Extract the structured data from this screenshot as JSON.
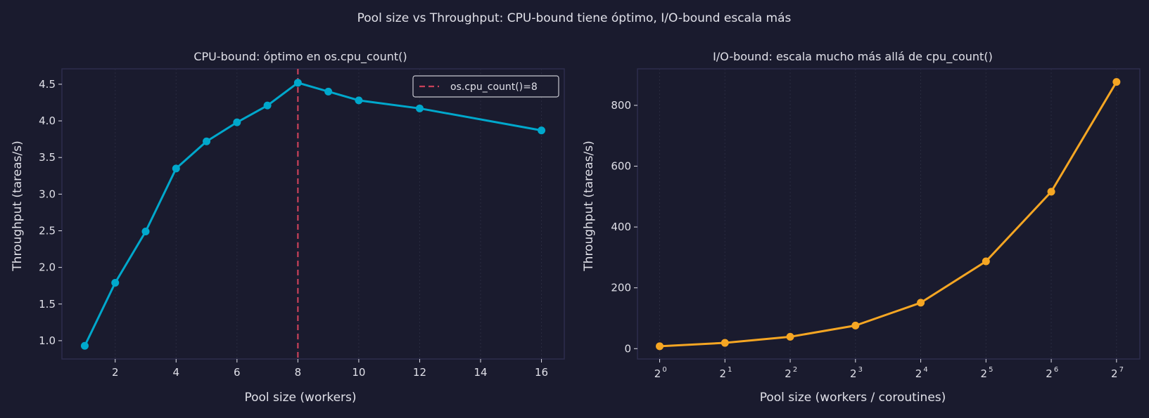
{
  "suptitle": "Pool size vs Throughput: CPU-bound tiene óptimo, I/O-bound escala más",
  "colors": {
    "background": "#1a1b2e",
    "frame": "#2c2d4d",
    "grid": "#2a2b40",
    "cpu_line": "#00a8cc",
    "io_line": "#f5a623",
    "marker_line": "#c9415a",
    "text": "#e0e0e8"
  },
  "chart_data": [
    {
      "type": "line",
      "title": "CPU-bound: óptimo en os.cpu_count()",
      "xlabel": "Pool size (workers)",
      "ylabel": "Throughput (tareas/s)",
      "x": [
        1,
        2,
        3,
        4,
        5,
        6,
        7,
        8,
        9,
        10,
        12,
        16
      ],
      "series": [
        {
          "values": [
            0.93,
            1.79,
            2.49,
            3.35,
            3.72,
            3.98,
            4.21,
            4.52,
            4.4,
            4.28,
            4.17,
            3.87
          ],
          "color": "#00a8cc",
          "marker": "circle"
        }
      ],
      "xlim": [
        0.25,
        16.75
      ],
      "ylim": [
        0.75,
        4.71
      ],
      "xticks": [
        2,
        4,
        6,
        8,
        10,
        12,
        14,
        16
      ],
      "yticks": [
        1.0,
        1.5,
        2.0,
        2.5,
        3.0,
        3.5,
        4.0,
        4.5
      ],
      "ytick_labels": [
        "1.0",
        "1.5",
        "2.0",
        "2.5",
        "3.0",
        "3.5",
        "4.0",
        "4.5"
      ],
      "vline": {
        "x": 8,
        "label": "os.cpu_count()=8",
        "style": "dashed",
        "color": "#c9415a"
      },
      "legend": "top-right",
      "grid": "vertical, dotted"
    },
    {
      "type": "line",
      "title": "I/O-bound: escala mucho más allá de cpu_count()",
      "xlabel": "Pool size (workers / coroutines)",
      "ylabel": "Throughput (tareas/s)",
      "xscale": "log2",
      "x": [
        1,
        2,
        4,
        8,
        16,
        32,
        64,
        128
      ],
      "series": [
        {
          "values": [
            8,
            19,
            39,
            76,
            151,
            287,
            516,
            877
          ],
          "color": "#f5a623",
          "marker": "circle"
        }
      ],
      "xlim": [
        0.79,
        164
      ],
      "ylim": [
        -34,
        920
      ],
      "xticks": [
        1,
        2,
        4,
        8,
        16,
        32,
        64,
        128
      ],
      "xtick_exponents": [
        "0",
        "1",
        "2",
        "3",
        "4",
        "5",
        "6",
        "7"
      ],
      "yticks": [
        0,
        200,
        400,
        600,
        800
      ],
      "ytick_labels": [
        "0",
        "200",
        "400",
        "600",
        "800"
      ],
      "grid": "vertical, dotted"
    }
  ]
}
